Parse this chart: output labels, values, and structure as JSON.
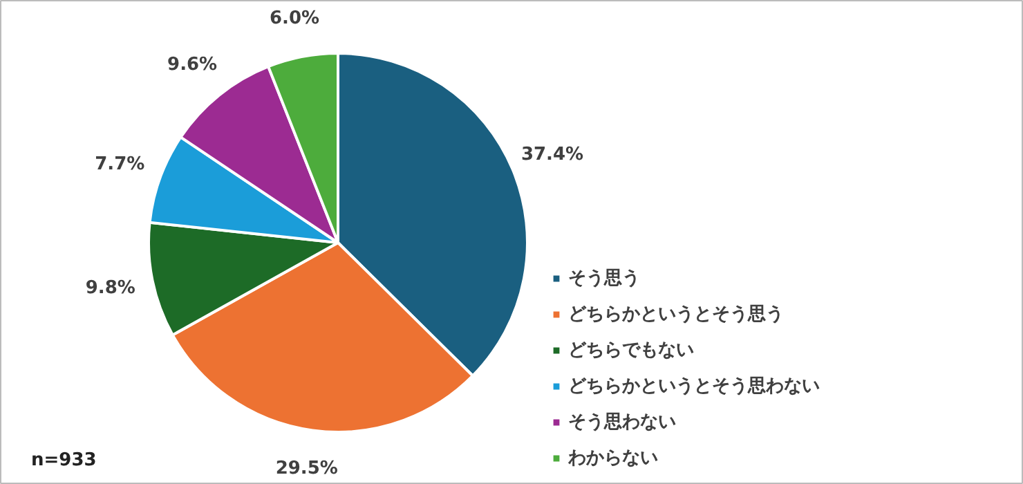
{
  "chart_data": {
    "type": "pie",
    "categories": [
      "そう思う",
      "どちらかというとそう思う",
      "どちらでもない",
      "どちらかというとそう思わない",
      "そう思わない",
      "わからない"
    ],
    "values": [
      37.4,
      29.5,
      9.8,
      7.7,
      9.6,
      6.0
    ],
    "value_labels": [
      "37.4%",
      "29.5%",
      "9.8%",
      "7.7%",
      "9.6%",
      "6.0%"
    ],
    "colors": [
      "#1a5f80",
      "#ed7232",
      "#1d6b27",
      "#1b9dd9",
      "#9c2b92",
      "#4dac3c"
    ],
    "legend": "right",
    "annotations": [
      "n=933"
    ]
  }
}
